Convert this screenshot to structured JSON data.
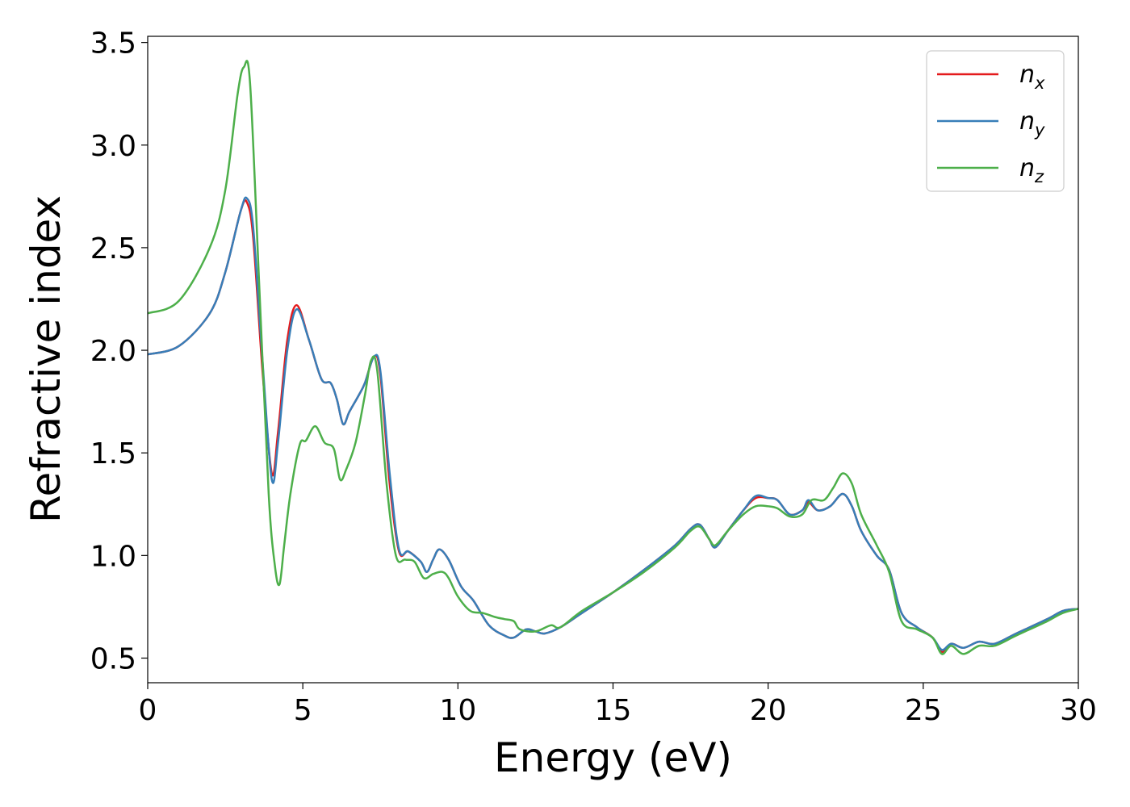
{
  "chart_data": {
    "type": "line",
    "title": "",
    "xlabel": "Energy (eV)",
    "ylabel": "Refractive index",
    "xlim": [
      0,
      30
    ],
    "ylim": [
      0.38,
      3.53
    ],
    "xticks": [
      0,
      5,
      10,
      15,
      20,
      25,
      30
    ],
    "xtick_labels": [
      "0",
      "5",
      "10",
      "15",
      "20",
      "25",
      "30"
    ],
    "yticks": [
      0.5,
      1.0,
      1.5,
      2.0,
      2.5,
      3.0,
      3.5
    ],
    "ytick_labels": [
      "0.5",
      "1.0",
      "1.5",
      "2.0",
      "2.5",
      "3.0",
      "3.5"
    ],
    "grid": false,
    "legend_position": "top-right",
    "series": [
      {
        "name": "n_x",
        "legend_base": "n",
        "legend_sub": "x",
        "color": "#e41a1c",
        "points": [
          [
            0,
            1.98
          ],
          [
            1,
            2.02
          ],
          [
            2,
            2.18
          ],
          [
            2.5,
            2.38
          ],
          [
            3.0,
            2.68
          ],
          [
            3.2,
            2.72
          ],
          [
            3.4,
            2.55
          ],
          [
            3.7,
            1.9
          ],
          [
            4.0,
            1.4
          ],
          [
            4.2,
            1.6
          ],
          [
            4.5,
            2.05
          ],
          [
            4.8,
            2.22
          ],
          [
            5.2,
            2.05
          ],
          [
            5.6,
            1.86
          ],
          [
            5.9,
            1.84
          ],
          [
            6.1,
            1.76
          ],
          [
            6.3,
            1.64
          ],
          [
            6.5,
            1.7
          ],
          [
            6.8,
            1.78
          ],
          [
            7.0,
            1.84
          ],
          [
            7.3,
            1.97
          ],
          [
            7.5,
            1.88
          ],
          [
            7.8,
            1.35
          ],
          [
            8.1,
            1.02
          ],
          [
            8.4,
            1.02
          ],
          [
            8.8,
            0.97
          ],
          [
            9.0,
            0.92
          ],
          [
            9.2,
            0.98
          ],
          [
            9.4,
            1.03
          ],
          [
            9.7,
            0.98
          ],
          [
            10.1,
            0.85
          ],
          [
            10.5,
            0.78
          ],
          [
            11.0,
            0.66
          ],
          [
            11.5,
            0.61
          ],
          [
            11.8,
            0.6
          ],
          [
            12.2,
            0.64
          ],
          [
            12.5,
            0.63
          ],
          [
            12.8,
            0.62
          ],
          [
            13.3,
            0.65
          ],
          [
            14.0,
            0.72
          ],
          [
            15.0,
            0.82
          ],
          [
            16.0,
            0.93
          ],
          [
            17.0,
            1.05
          ],
          [
            17.5,
            1.13
          ],
          [
            17.8,
            1.15
          ],
          [
            18.1,
            1.08
          ],
          [
            18.3,
            1.04
          ],
          [
            18.7,
            1.12
          ],
          [
            19.2,
            1.22
          ],
          [
            19.6,
            1.28
          ],
          [
            20.0,
            1.28
          ],
          [
            20.3,
            1.27
          ],
          [
            20.7,
            1.2
          ],
          [
            21.1,
            1.22
          ],
          [
            21.3,
            1.26
          ],
          [
            21.6,
            1.22
          ],
          [
            22.0,
            1.24
          ],
          [
            22.4,
            1.3
          ],
          [
            22.7,
            1.24
          ],
          [
            23.0,
            1.12
          ],
          [
            23.5,
            1.0
          ],
          [
            23.9,
            0.93
          ],
          [
            24.3,
            0.72
          ],
          [
            24.8,
            0.65
          ],
          [
            25.3,
            0.6
          ],
          [
            25.6,
            0.53
          ],
          [
            25.9,
            0.57
          ],
          [
            26.3,
            0.55
          ],
          [
            26.8,
            0.58
          ],
          [
            27.3,
            0.57
          ],
          [
            28.0,
            0.62
          ],
          [
            29.0,
            0.69
          ],
          [
            29.5,
            0.73
          ],
          [
            30.0,
            0.74
          ]
        ]
      },
      {
        "name": "n_y",
        "legend_base": "n",
        "legend_sub": "y",
        "color": "#377eb8",
        "points": [
          [
            0,
            1.98
          ],
          [
            1,
            2.02
          ],
          [
            2,
            2.18
          ],
          [
            2.5,
            2.38
          ],
          [
            3.0,
            2.68
          ],
          [
            3.2,
            2.74
          ],
          [
            3.4,
            2.6
          ],
          [
            3.7,
            1.95
          ],
          [
            4.0,
            1.37
          ],
          [
            4.2,
            1.55
          ],
          [
            4.5,
            2.0
          ],
          [
            4.8,
            2.2
          ],
          [
            5.2,
            2.05
          ],
          [
            5.6,
            1.86
          ],
          [
            5.9,
            1.84
          ],
          [
            6.1,
            1.76
          ],
          [
            6.3,
            1.64
          ],
          [
            6.5,
            1.7
          ],
          [
            6.8,
            1.78
          ],
          [
            7.0,
            1.84
          ],
          [
            7.3,
            1.97
          ],
          [
            7.5,
            1.9
          ],
          [
            7.8,
            1.4
          ],
          [
            8.1,
            1.03
          ],
          [
            8.4,
            1.02
          ],
          [
            8.8,
            0.97
          ],
          [
            9.0,
            0.92
          ],
          [
            9.2,
            0.98
          ],
          [
            9.4,
            1.03
          ],
          [
            9.7,
            0.98
          ],
          [
            10.1,
            0.85
          ],
          [
            10.5,
            0.78
          ],
          [
            11.0,
            0.66
          ],
          [
            11.5,
            0.61
          ],
          [
            11.8,
            0.6
          ],
          [
            12.2,
            0.64
          ],
          [
            12.5,
            0.63
          ],
          [
            12.8,
            0.62
          ],
          [
            13.3,
            0.65
          ],
          [
            14.0,
            0.72
          ],
          [
            15.0,
            0.82
          ],
          [
            16.0,
            0.93
          ],
          [
            17.0,
            1.05
          ],
          [
            17.5,
            1.13
          ],
          [
            17.8,
            1.15
          ],
          [
            18.1,
            1.08
          ],
          [
            18.3,
            1.04
          ],
          [
            18.7,
            1.12
          ],
          [
            19.2,
            1.22
          ],
          [
            19.6,
            1.29
          ],
          [
            20.0,
            1.28
          ],
          [
            20.3,
            1.27
          ],
          [
            20.7,
            1.2
          ],
          [
            21.1,
            1.22
          ],
          [
            21.3,
            1.27
          ],
          [
            21.6,
            1.22
          ],
          [
            22.0,
            1.24
          ],
          [
            22.4,
            1.3
          ],
          [
            22.7,
            1.24
          ],
          [
            23.0,
            1.12
          ],
          [
            23.5,
            1.0
          ],
          [
            23.9,
            0.93
          ],
          [
            24.3,
            0.72
          ],
          [
            24.8,
            0.65
          ],
          [
            25.3,
            0.6
          ],
          [
            25.6,
            0.54
          ],
          [
            25.9,
            0.57
          ],
          [
            26.3,
            0.55
          ],
          [
            26.8,
            0.58
          ],
          [
            27.3,
            0.57
          ],
          [
            28.0,
            0.62
          ],
          [
            29.0,
            0.69
          ],
          [
            29.5,
            0.73
          ],
          [
            30.0,
            0.74
          ]
        ]
      },
      {
        "name": "n_z",
        "legend_base": "n",
        "legend_sub": "z",
        "color": "#4daf4a",
        "points": [
          [
            0,
            2.18
          ],
          [
            1,
            2.24
          ],
          [
            2,
            2.5
          ],
          [
            2.5,
            2.78
          ],
          [
            2.9,
            3.25
          ],
          [
            3.1,
            3.38
          ],
          [
            3.3,
            3.3
          ],
          [
            3.6,
            2.3
          ],
          [
            3.9,
            1.3
          ],
          [
            4.1,
            0.95
          ],
          [
            4.25,
            0.86
          ],
          [
            4.4,
            1.05
          ],
          [
            4.6,
            1.3
          ],
          [
            4.9,
            1.54
          ],
          [
            5.1,
            1.56
          ],
          [
            5.4,
            1.63
          ],
          [
            5.7,
            1.55
          ],
          [
            6.0,
            1.52
          ],
          [
            6.2,
            1.37
          ],
          [
            6.4,
            1.42
          ],
          [
            6.7,
            1.55
          ],
          [
            7.0,
            1.78
          ],
          [
            7.2,
            1.95
          ],
          [
            7.4,
            1.9
          ],
          [
            7.7,
            1.35
          ],
          [
            8.0,
            1.0
          ],
          [
            8.3,
            0.98
          ],
          [
            8.6,
            0.97
          ],
          [
            8.9,
            0.89
          ],
          [
            9.2,
            0.91
          ],
          [
            9.5,
            0.92
          ],
          [
            9.7,
            0.89
          ],
          [
            10.0,
            0.8
          ],
          [
            10.4,
            0.73
          ],
          [
            10.8,
            0.72
          ],
          [
            11.2,
            0.7
          ],
          [
            11.5,
            0.69
          ],
          [
            11.8,
            0.68
          ],
          [
            12.0,
            0.64
          ],
          [
            12.5,
            0.63
          ],
          [
            13.0,
            0.66
          ],
          [
            13.3,
            0.65
          ],
          [
            14.0,
            0.73
          ],
          [
            15.0,
            0.82
          ],
          [
            16.0,
            0.92
          ],
          [
            17.0,
            1.04
          ],
          [
            17.5,
            1.12
          ],
          [
            17.8,
            1.14
          ],
          [
            18.1,
            1.08
          ],
          [
            18.3,
            1.05
          ],
          [
            18.7,
            1.12
          ],
          [
            19.2,
            1.2
          ],
          [
            19.6,
            1.24
          ],
          [
            20.0,
            1.24
          ],
          [
            20.3,
            1.23
          ],
          [
            20.7,
            1.19
          ],
          [
            21.1,
            1.2
          ],
          [
            21.4,
            1.27
          ],
          [
            21.8,
            1.27
          ],
          [
            22.1,
            1.33
          ],
          [
            22.4,
            1.4
          ],
          [
            22.7,
            1.35
          ],
          [
            23.0,
            1.2
          ],
          [
            23.5,
            1.05
          ],
          [
            23.9,
            0.92
          ],
          [
            24.3,
            0.68
          ],
          [
            24.8,
            0.64
          ],
          [
            25.3,
            0.6
          ],
          [
            25.6,
            0.52
          ],
          [
            25.9,
            0.56
          ],
          [
            26.3,
            0.52
          ],
          [
            26.8,
            0.56
          ],
          [
            27.3,
            0.56
          ],
          [
            28.0,
            0.61
          ],
          [
            29.0,
            0.68
          ],
          [
            29.5,
            0.72
          ],
          [
            30.0,
            0.74
          ]
        ]
      }
    ]
  }
}
